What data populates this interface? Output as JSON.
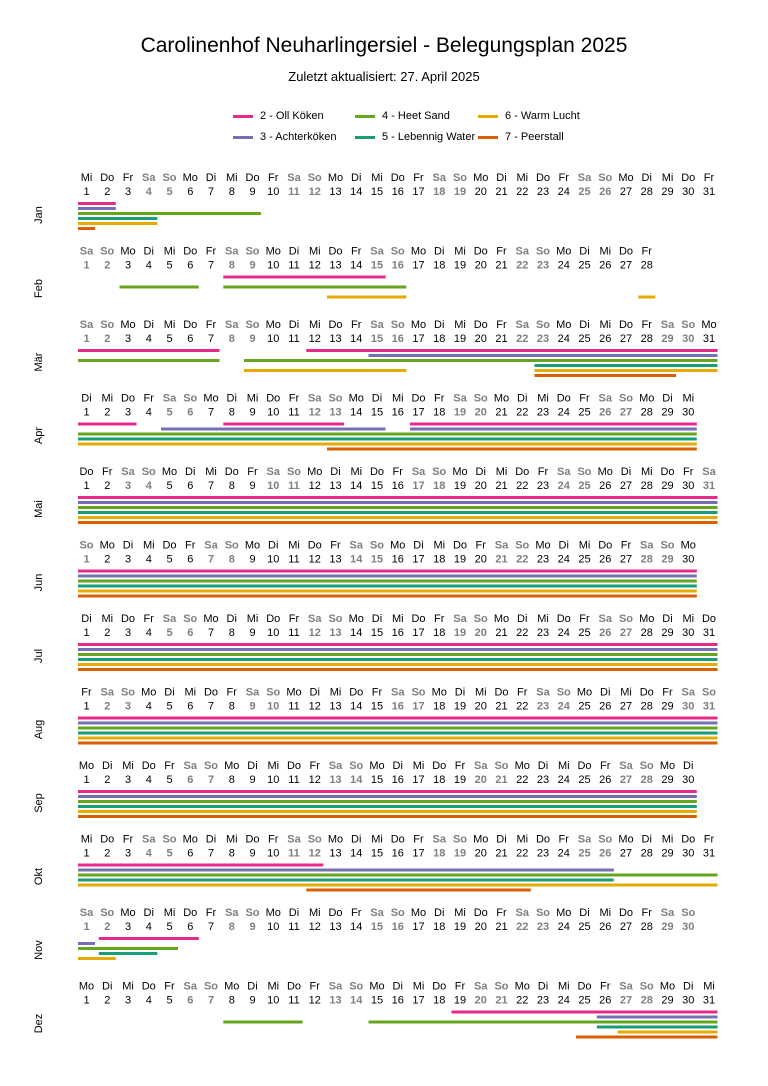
{
  "title": "Carolinenhof Neuharlingersiel - Belegungsplan 2025",
  "subtitle": "Zuletzt aktualisiert: 27. April 2025",
  "legend": [
    {
      "label": "2 - Oll Köken",
      "color": "#e7298a"
    },
    {
      "label": "3 - Achterköken",
      "color": "#7570b3"
    },
    {
      "label": "4 - Heet Sand",
      "color": "#66a61e"
    },
    {
      "label": "5 - Lebennig Water",
      "color": "#1b9e77"
    },
    {
      "label": "6 - Warm Lucht",
      "color": "#e6ab02"
    },
    {
      "label": "7 - Peerstall",
      "color": "#d95f02"
    }
  ],
  "chart_data": {
    "type": "gantt",
    "year": 2025,
    "rows": [
      "2 - Oll Köken",
      "3 - Achterköken",
      "4 - Heet Sand",
      "5 - Lebennig Water",
      "6 - Warm Lucht",
      "7 - Peerstall"
    ],
    "months": [
      {
        "name": "Jan",
        "days": 31,
        "weekdays": [
          "Mi",
          "Do",
          "Fr",
          "Sa",
          "So",
          "Mo",
          "Di",
          "Mi",
          "Do",
          "Fr",
          "Sa",
          "So",
          "Mo",
          "Di",
          "Mi",
          "Do",
          "Fr",
          "Sa",
          "So",
          "Mo",
          "Di",
          "Mi",
          "Do",
          "Fr",
          "Sa",
          "So",
          "Mo",
          "Di",
          "Mi",
          "Do",
          "Fr"
        ],
        "bookings": [
          [
            0,
            1,
            2
          ],
          [
            1,
            1,
            2
          ],
          [
            2,
            1,
            9
          ],
          [
            3,
            1,
            4
          ],
          [
            4,
            1,
            4
          ],
          [
            5,
            1,
            1
          ]
        ]
      },
      {
        "name": "Feb",
        "days": 28,
        "weekdays": [
          "Sa",
          "So",
          "Mo",
          "Di",
          "Mi",
          "Do",
          "Fr",
          "Sa",
          "So",
          "Mo",
          "Di",
          "Mi",
          "Do",
          "Fr",
          "Sa",
          "So",
          "Mo",
          "Di",
          "Mi",
          "Do",
          "Fr",
          "Sa",
          "So",
          "Mo",
          "Di",
          "Mi",
          "Do",
          "Fr"
        ],
        "bookings": [
          [
            0,
            8,
            15
          ],
          [
            2,
            3,
            6
          ],
          [
            2,
            8,
            16
          ],
          [
            4,
            13,
            16
          ],
          [
            4,
            28,
            28
          ]
        ]
      },
      {
        "name": "Mär",
        "days": 31,
        "weekdays": [
          "Sa",
          "So",
          "Mo",
          "Di",
          "Mi",
          "Do",
          "Fr",
          "Sa",
          "So",
          "Mo",
          "Di",
          "Mi",
          "Do",
          "Fr",
          "Sa",
          "So",
          "Mo",
          "Di",
          "Mi",
          "Do",
          "Fr",
          "Sa",
          "So",
          "Mo",
          "Di",
          "Mi",
          "Do",
          "Fr",
          "Sa",
          "So",
          "Mo"
        ],
        "bookings": [
          [
            0,
            1,
            7
          ],
          [
            0,
            12,
            31
          ],
          [
            1,
            15,
            31
          ],
          [
            2,
            1,
            7
          ],
          [
            2,
            9,
            31
          ],
          [
            3,
            23,
            31
          ],
          [
            4,
            9,
            16
          ],
          [
            4,
            23,
            31
          ],
          [
            5,
            23,
            29
          ]
        ]
      },
      {
        "name": "Apr",
        "days": 30,
        "weekdays": [
          "Di",
          "Mi",
          "Do",
          "Fr",
          "Sa",
          "So",
          "Mo",
          "Di",
          "Mi",
          "Do",
          "Fr",
          "Sa",
          "So",
          "Mo",
          "Di",
          "Mi",
          "Do",
          "Fr",
          "Sa",
          "So",
          "Mo",
          "Di",
          "Mi",
          "Do",
          "Fr",
          "Sa",
          "So",
          "Mo",
          "Di",
          "Mi"
        ],
        "bookings": [
          [
            0,
            1,
            3
          ],
          [
            0,
            8,
            13
          ],
          [
            0,
            17,
            30
          ],
          [
            1,
            5,
            15
          ],
          [
            1,
            17,
            30
          ],
          [
            2,
            1,
            30
          ],
          [
            3,
            1,
            30
          ],
          [
            4,
            1,
            30
          ],
          [
            5,
            13,
            30
          ]
        ]
      },
      {
        "name": "Mai",
        "days": 31,
        "weekdays": [
          "Do",
          "Fr",
          "Sa",
          "So",
          "Mo",
          "Di",
          "Mi",
          "Do",
          "Fr",
          "Sa",
          "So",
          "Mo",
          "Di",
          "Mi",
          "Do",
          "Fr",
          "Sa",
          "So",
          "Mo",
          "Di",
          "Mi",
          "Do",
          "Fr",
          "Sa",
          "So",
          "Mo",
          "Di",
          "Mi",
          "Do",
          "Fr",
          "Sa"
        ],
        "bookings": [
          [
            0,
            1,
            31
          ],
          [
            1,
            1,
            31
          ],
          [
            2,
            1,
            31
          ],
          [
            3,
            1,
            31
          ],
          [
            4,
            1,
            31
          ],
          [
            5,
            1,
            31
          ]
        ]
      },
      {
        "name": "Jun",
        "days": 30,
        "weekdays": [
          "So",
          "Mo",
          "Di",
          "Mi",
          "Do",
          "Fr",
          "Sa",
          "So",
          "Mo",
          "Di",
          "Mi",
          "Do",
          "Fr",
          "Sa",
          "So",
          "Mo",
          "Di",
          "Mi",
          "Do",
          "Fr",
          "Sa",
          "So",
          "Mo",
          "Di",
          "Mi",
          "Do",
          "Fr",
          "Sa",
          "So",
          "Mo"
        ],
        "bookings": [
          [
            0,
            1,
            30
          ],
          [
            1,
            1,
            30
          ],
          [
            2,
            1,
            30
          ],
          [
            3,
            1,
            30
          ],
          [
            4,
            1,
            30
          ],
          [
            5,
            1,
            30
          ]
        ]
      },
      {
        "name": "Jul",
        "days": 31,
        "weekdays": [
          "Di",
          "Mi",
          "Do",
          "Fr",
          "Sa",
          "So",
          "Mo",
          "Di",
          "Mi",
          "Do",
          "Fr",
          "Sa",
          "So",
          "Mo",
          "Di",
          "Mi",
          "Do",
          "Fr",
          "Sa",
          "So",
          "Mo",
          "Di",
          "Mi",
          "Do",
          "Fr",
          "Sa",
          "So",
          "Mo",
          "Di",
          "Mi",
          "Do"
        ],
        "bookings": [
          [
            0,
            1,
            31
          ],
          [
            1,
            1,
            31
          ],
          [
            2,
            1,
            31
          ],
          [
            3,
            1,
            31
          ],
          [
            4,
            1,
            31
          ],
          [
            5,
            1,
            31
          ]
        ]
      },
      {
        "name": "Aug",
        "days": 31,
        "weekdays": [
          "Fr",
          "Sa",
          "So",
          "Mo",
          "Di",
          "Mi",
          "Do",
          "Fr",
          "Sa",
          "So",
          "Mo",
          "Di",
          "Mi",
          "Do",
          "Fr",
          "Sa",
          "So",
          "Mo",
          "Di",
          "Mi",
          "Do",
          "Fr",
          "Sa",
          "So",
          "Mo",
          "Di",
          "Mi",
          "Do",
          "Fr",
          "Sa",
          "So"
        ],
        "bookings": [
          [
            0,
            1,
            31
          ],
          [
            1,
            1,
            31
          ],
          [
            2,
            1,
            31
          ],
          [
            3,
            1,
            31
          ],
          [
            4,
            1,
            31
          ],
          [
            5,
            1,
            31
          ]
        ]
      },
      {
        "name": "Sep",
        "days": 30,
        "weekdays": [
          "Mo",
          "Di",
          "Mi",
          "Do",
          "Fr",
          "Sa",
          "So",
          "Mo",
          "Di",
          "Mi",
          "Do",
          "Fr",
          "Sa",
          "So",
          "Mo",
          "Di",
          "Mi",
          "Do",
          "Fr",
          "Sa",
          "So",
          "Mo",
          "Di",
          "Mi",
          "Do",
          "Fr",
          "Sa",
          "So",
          "Mo",
          "Di"
        ],
        "bookings": [
          [
            0,
            1,
            30
          ],
          [
            1,
            1,
            30
          ],
          [
            2,
            1,
            30
          ],
          [
            3,
            1,
            30
          ],
          [
            4,
            1,
            30
          ],
          [
            5,
            1,
            30
          ]
        ]
      },
      {
        "name": "Okt",
        "days": 31,
        "weekdays": [
          "Mi",
          "Do",
          "Fr",
          "Sa",
          "So",
          "Mo",
          "Di",
          "Mi",
          "Do",
          "Fr",
          "Sa",
          "So",
          "Mo",
          "Di",
          "Mi",
          "Do",
          "Fr",
          "Sa",
          "So",
          "Mo",
          "Di",
          "Mi",
          "Do",
          "Fr",
          "Sa",
          "So",
          "Mo",
          "Di",
          "Mi",
          "Do",
          "Fr"
        ],
        "bookings": [
          [
            0,
            1,
            12
          ],
          [
            1,
            1,
            26
          ],
          [
            2,
            1,
            31
          ],
          [
            3,
            1,
            26
          ],
          [
            4,
            1,
            31
          ],
          [
            5,
            12,
            22
          ]
        ]
      },
      {
        "name": "Nov",
        "days": 30,
        "weekdays": [
          "Sa",
          "So",
          "Mo",
          "Di",
          "Mi",
          "Do",
          "Fr",
          "Sa",
          "So",
          "Mo",
          "Di",
          "Mi",
          "Do",
          "Fr",
          "Sa",
          "So",
          "Mo",
          "Di",
          "Mi",
          "Do",
          "Fr",
          "Sa",
          "So",
          "Mo",
          "Di",
          "Mi",
          "Do",
          "Fr",
          "Sa",
          "So"
        ],
        "bookings": [
          [
            0,
            2,
            6
          ],
          [
            1,
            1,
            1
          ],
          [
            2,
            1,
            5
          ],
          [
            3,
            2,
            4
          ],
          [
            4,
            1,
            2
          ]
        ]
      },
      {
        "name": "Dez",
        "days": 31,
        "weekdays": [
          "Mo",
          "Di",
          "Mi",
          "Do",
          "Fr",
          "Sa",
          "So",
          "Mo",
          "Di",
          "Mi",
          "Do",
          "Fr",
          "Sa",
          "So",
          "Mo",
          "Di",
          "Mi",
          "Do",
          "Fr",
          "Sa",
          "So",
          "Mo",
          "Di",
          "Mi",
          "Do",
          "Fr",
          "Sa",
          "So",
          "Mo",
          "Di",
          "Mi"
        ],
        "bookings": [
          [
            0,
            19,
            31
          ],
          [
            1,
            26,
            31
          ],
          [
            2,
            8,
            11
          ],
          [
            2,
            15,
            31
          ],
          [
            3,
            26,
            31
          ],
          [
            4,
            27,
            31
          ],
          [
            5,
            25,
            31
          ]
        ]
      }
    ]
  }
}
